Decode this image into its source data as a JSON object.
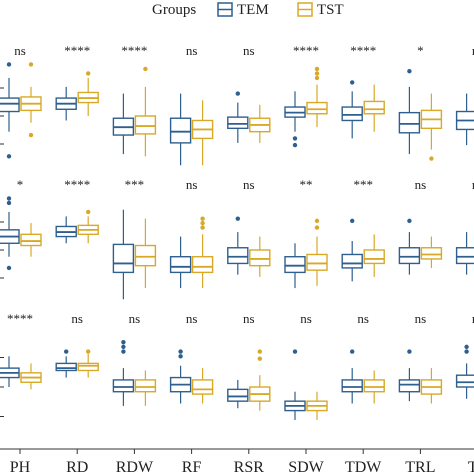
{
  "chart_data": {
    "type": "boxplot",
    "legend": {
      "title": "Groups",
      "placement": "top-center",
      "entries": [
        {
          "name": "TEM",
          "color": "#2f5f8f"
        },
        {
          "name": "TST",
          "color": "#d9a827"
        }
      ]
    },
    "categories": [
      "PH",
      "RD",
      "RDW",
      "RF",
      "RSR",
      "SDW",
      "TDW",
      "TRL",
      "TL"
    ],
    "rows": [
      {
        "significance": [
          "ns",
          "****",
          "****",
          "ns",
          "ns",
          "****",
          "****",
          "*",
          "ns"
        ],
        "boxes": {
          "TEM": [
            {
              "q1": 54,
              "med": 61,
              "q3": 66,
              "wl": 36,
              "wh": 84,
              "out": [
                96,
                14
              ]
            },
            {
              "q1": 56,
              "med": 61,
              "q3": 66,
              "wl": 46,
              "wh": 76,
              "out": []
            },
            {
              "q1": 33,
              "med": 40,
              "q3": 48,
              "wl": 16,
              "wh": 70,
              "out": []
            },
            {
              "q1": 26,
              "med": 36,
              "q3": 48,
              "wl": 6,
              "wh": 70,
              "out": []
            },
            {
              "q1": 39,
              "med": 43,
              "q3": 49,
              "wl": 26,
              "wh": 62,
              "out": [
                70
              ]
            },
            {
              "q1": 49,
              "med": 53,
              "q3": 58,
              "wl": 36,
              "wh": 72,
              "out": [
                30,
                24
              ]
            },
            {
              "q1": 46,
              "med": 51,
              "q3": 58,
              "wl": 30,
              "wh": 72,
              "out": [
                80
              ]
            },
            {
              "q1": 35,
              "med": 43,
              "q3": 53,
              "wl": 16,
              "wh": 76,
              "out": [
                90
              ]
            },
            {
              "q1": 38,
              "med": 46,
              "q3": 54,
              "wl": 24,
              "wh": 70,
              "out": []
            }
          ],
          "TST": [
            {
              "q1": 55,
              "med": 61,
              "q3": 67,
              "wl": 44,
              "wh": 76,
              "out": [
                96,
                33
              ]
            },
            {
              "q1": 62,
              "med": 66,
              "q3": 71,
              "wl": 50,
              "wh": 84,
              "out": [
                88
              ]
            },
            {
              "q1": 34,
              "med": 41,
              "q3": 50,
              "wl": 14,
              "wh": 76,
              "out": [
                92
              ]
            },
            {
              "q1": 30,
              "med": 38,
              "q3": 46,
              "wl": 6,
              "wh": 64,
              "out": []
            },
            {
              "q1": 36,
              "med": 42,
              "q3": 48,
              "wl": 26,
              "wh": 60,
              "out": []
            },
            {
              "q1": 52,
              "med": 56,
              "q3": 62,
              "wl": 40,
              "wh": 78,
              "out": [
                84,
                88,
                92
              ]
            },
            {
              "q1": 52,
              "med": 56,
              "q3": 63,
              "wl": 36,
              "wh": 78,
              "out": []
            },
            {
              "q1": 39,
              "med": 47,
              "q3": 55,
              "wl": 20,
              "wh": 70,
              "out": [
                12
              ]
            },
            {
              "q1": 40,
              "med": 48,
              "q3": 56,
              "wl": 24,
              "wh": 72,
              "out": []
            }
          ]
        }
      },
      {
        "significance": [
          "*",
          "****",
          "***",
          "ns",
          "ns",
          "**",
          "***",
          "ns",
          "ns"
        ],
        "boxes": {
          "TEM": [
            {
              "q1": 56,
              "med": 62,
              "q3": 68,
              "wl": 44,
              "wh": 84,
              "out": [
                92,
                96,
                34
              ]
            },
            {
              "q1": 62,
              "med": 66,
              "q3": 71,
              "wl": 56,
              "wh": 80,
              "out": []
            },
            {
              "q1": 30,
              "med": 38,
              "q3": 55,
              "wl": 6,
              "wh": 86,
              "out": []
            },
            {
              "q1": 30,
              "med": 35,
              "q3": 44,
              "wl": 16,
              "wh": 62,
              "out": []
            },
            {
              "q1": 38,
              "med": 44,
              "q3": 52,
              "wl": 28,
              "wh": 66,
              "out": [
                78
              ]
            },
            {
              "q1": 30,
              "med": 36,
              "q3": 44,
              "wl": 16,
              "wh": 56,
              "out": []
            },
            {
              "q1": 34,
              "med": 38,
              "q3": 46,
              "wl": 22,
              "wh": 58,
              "out": [
                76
              ]
            },
            {
              "q1": 38,
              "med": 44,
              "q3": 52,
              "wl": 28,
              "wh": 66,
              "out": [
                76
              ]
            },
            {
              "q1": 38,
              "med": 44,
              "q3": 52,
              "wl": 28,
              "wh": 66,
              "out": []
            }
          ],
          "TST": [
            {
              "q1": 54,
              "med": 58,
              "q3": 64,
              "wl": 44,
              "wh": 74,
              "out": []
            },
            {
              "q1": 64,
              "med": 68,
              "q3": 72,
              "wl": 56,
              "wh": 80,
              "out": [
                84
              ]
            },
            {
              "q1": 36,
              "med": 44,
              "q3": 54,
              "wl": 16,
              "wh": 78,
              "out": []
            },
            {
              "q1": 30,
              "med": 35,
              "q3": 44,
              "wl": 16,
              "wh": 64,
              "out": [
                70,
                74,
                78
              ]
            },
            {
              "q1": 36,
              "med": 42,
              "q3": 50,
              "wl": 26,
              "wh": 62,
              "out": []
            },
            {
              "q1": 32,
              "med": 38,
              "q3": 46,
              "wl": 18,
              "wh": 62,
              "out": [
                70,
                76
              ]
            },
            {
              "q1": 38,
              "med": 42,
              "q3": 50,
              "wl": 26,
              "wh": 64,
              "out": []
            },
            {
              "q1": 42,
              "med": 46,
              "q3": 52,
              "wl": 34,
              "wh": 62,
              "out": []
            },
            {
              "q1": 40,
              "med": 46,
              "q3": 54,
              "wl": 30,
              "wh": 66,
              "out": []
            }
          ]
        }
      },
      {
        "significance": [
          "****",
          "ns",
          "ns",
          "ns",
          "ns",
          "ns",
          "ns",
          "ns",
          "ns"
        ],
        "boxes": {
          "TEM": [
            {
              "q1": 58,
              "med": 62,
              "q3": 66,
              "wl": 50,
              "wh": 76,
              "out": []
            },
            {
              "q1": 64,
              "med": 66,
              "q3": 70,
              "wl": 58,
              "wh": 76,
              "out": [
                80
              ]
            },
            {
              "q1": 46,
              "med": 50,
              "q3": 56,
              "wl": 34,
              "wh": 66,
              "out": [
                80,
                84,
                88
              ]
            },
            {
              "q1": 46,
              "med": 52,
              "q3": 58,
              "wl": 36,
              "wh": 68,
              "out": [
                76,
                80
              ]
            },
            {
              "q1": 38,
              "med": 42,
              "q3": 48,
              "wl": 32,
              "wh": 56,
              "out": []
            },
            {
              "q1": 30,
              "med": 34,
              "q3": 38,
              "wl": 22,
              "wh": 46,
              "out": [
                80
              ]
            },
            {
              "q1": 46,
              "med": 50,
              "q3": 56,
              "wl": 36,
              "wh": 66,
              "out": [
                80
              ]
            },
            {
              "q1": 46,
              "med": 52,
              "q3": 56,
              "wl": 38,
              "wh": 66,
              "out": [
                80
              ]
            },
            {
              "q1": 50,
              "med": 54,
              "q3": 60,
              "wl": 40,
              "wh": 70,
              "out": [
                80,
                84
              ]
            }
          ],
          "TST": [
            {
              "q1": 54,
              "med": 58,
              "q3": 62,
              "wl": 48,
              "wh": 70,
              "out": []
            },
            {
              "q1": 64,
              "med": 68,
              "q3": 70,
              "wl": 58,
              "wh": 78,
              "out": [
                80
              ]
            },
            {
              "q1": 46,
              "med": 50,
              "q3": 56,
              "wl": 34,
              "wh": 64,
              "out": []
            },
            {
              "q1": 44,
              "med": 48,
              "q3": 56,
              "wl": 36,
              "wh": 66,
              "out": []
            },
            {
              "q1": 38,
              "med": 44,
              "q3": 50,
              "wl": 30,
              "wh": 60,
              "out": [
                74,
                80
              ]
            },
            {
              "q1": 30,
              "med": 34,
              "q3": 38,
              "wl": 22,
              "wh": 46,
              "out": []
            },
            {
              "q1": 46,
              "med": 50,
              "q3": 56,
              "wl": 36,
              "wh": 64,
              "out": []
            },
            {
              "q1": 44,
              "med": 50,
              "q3": 56,
              "wl": 36,
              "wh": 66,
              "out": []
            },
            {
              "q1": 48,
              "med": 54,
              "q3": 60,
              "wl": 40,
              "wh": 68,
              "out": []
            }
          ]
        }
      }
    ]
  }
}
